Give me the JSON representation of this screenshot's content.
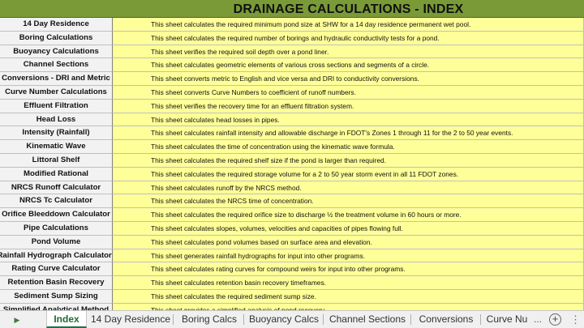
{
  "sheet": {
    "title": "DRAINAGE CALCULATIONS - INDEX",
    "rows": [
      {
        "name": "14 Day Residence",
        "desc": "This sheet calculates the required minimum pond size at SHW for a 14 day residence permanent wet pool."
      },
      {
        "name": "Boring Calculations",
        "desc": "This sheet calculates the required number of borings and hydraulic conductivity tests for a pond."
      },
      {
        "name": "Buoyancy Calculations",
        "desc": "This sheet verifies the required soil depth over a pond liner."
      },
      {
        "name": "Channel Sections",
        "desc": "This sheet calculates geometric elements of various cross sections and segments of a circle."
      },
      {
        "name": "Conversions - DRI and Metric",
        "desc": "This sheet converts metric to English and vice versa and DRI to conductivity conversions."
      },
      {
        "name": "Curve Number Calculations",
        "desc": "This sheet converts Curve Numbers to coefficient of runoff numbers."
      },
      {
        "name": "Effluent Filtration",
        "desc": "This sheet verifies the recovery time for an effluent filtration system."
      },
      {
        "name": "Head Loss",
        "desc": "This sheet calculates head losses in pipes."
      },
      {
        "name": "Intensity (Rainfall)",
        "desc": "This sheet calculates rainfall intensity and allowable discharge in FDOT's Zones 1 through 11 for the 2 to 50 year events."
      },
      {
        "name": "Kinematic Wave",
        "desc": "This sheet calculates the time of concentration using the kinematic wave formula."
      },
      {
        "name": "Littoral Shelf",
        "desc": "This sheet calculates the required shelf size if the pond is larger than required."
      },
      {
        "name": "Modified Rational",
        "desc": "This sheet calculates the required storage volume for a 2 to 50 year storm event in all 11 FDOT zones."
      },
      {
        "name": "NRCS Runoff Calculator",
        "desc": "This sheet calculates runoff by the NRCS method."
      },
      {
        "name": "NRCS Tc Calculator",
        "desc": "This sheet calculates the NRCS time of concentration."
      },
      {
        "name": "Orifice Bleeddown Calculator",
        "desc": "This sheet calculates the required orifice size to discharge ½ the treatment volume in 60 hours or more."
      },
      {
        "name": "Pipe Calculations",
        "desc": "This sheet calculates slopes, volumes, velocities and capacities of pipes flowing full."
      },
      {
        "name": "Pond Volume",
        "desc": "This sheet calculates pond volumes based on surface area and elevation."
      },
      {
        "name": "Rainfall Hydrograph Calculator",
        "desc": "This sheet generates rainfall hydrographs for input into other programs."
      },
      {
        "name": "Rating Curve Calculator",
        "desc": "This sheet calculates rating curves for compound weirs for input into other programs."
      },
      {
        "name": "Retention Basin Recovery",
        "desc": "This sheet calculates retention basin recovery timeframes."
      },
      {
        "name": "Sediment Sump Sizing",
        "desc": "This sheet calculates the required sediment sump size."
      },
      {
        "name": "Simplified Analytical Method",
        "desc": "This sheet provides a simplified analysis of pond recovery."
      }
    ]
  },
  "tabbar": {
    "nav_icon": "scroll-tabs-right-icon",
    "tabs": [
      {
        "label": "Index",
        "active": true
      },
      {
        "label": "14 Day Residence",
        "active": false
      },
      {
        "label": "Boring Calcs",
        "active": false
      },
      {
        "label": "Buoyancy Calcs",
        "active": false
      },
      {
        "label": "Channel Sections",
        "active": false
      },
      {
        "label": "Conversions",
        "active": false
      },
      {
        "label": "Curve Nu",
        "active": false
      }
    ],
    "ellipsis": "...",
    "add_icon": "add-sheet-icon",
    "more_icon": "more-options-icon"
  },
  "colors": {
    "title_bg": "#7a9a38",
    "name_bg": "#f2f2f2",
    "desc_bg": "#ffff99",
    "active_tab_text": "#1e6b30"
  }
}
